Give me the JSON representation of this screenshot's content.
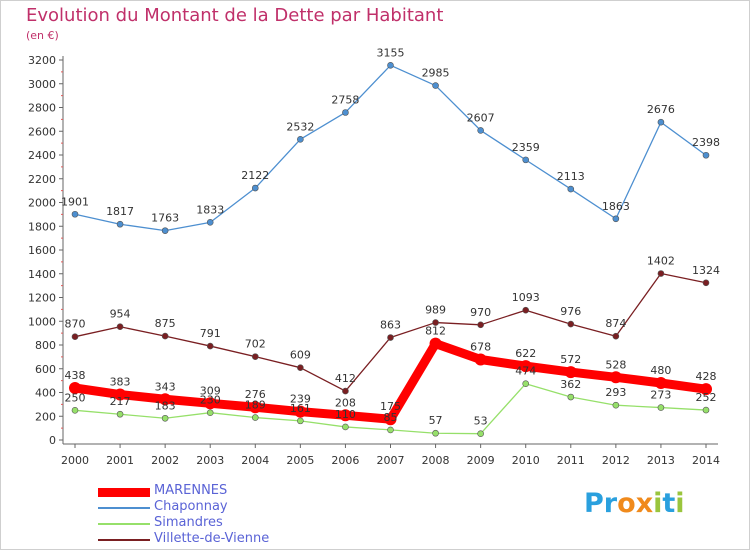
{
  "header": {
    "title": "Evolution du Montant de la Dette par Habitant",
    "subtitle": "(en €)"
  },
  "brand": {
    "letters": [
      "P",
      "r",
      "o",
      "x",
      "i",
      "t",
      "i"
    ],
    "colors": [
      "#2aa0de",
      "#2aa0de",
      "#f08a1c",
      "#f08a1c",
      "#9ac53d",
      "#2aa0de",
      "#9ac53d"
    ]
  },
  "chart_data": {
    "type": "line",
    "title": "Evolution du Montant de la Dette par Habitant",
    "subtitle": "(en €)",
    "xlabel": "",
    "ylabel": "",
    "x": [
      "2000",
      "2001",
      "2002",
      "2003",
      "2004",
      "2005",
      "2006",
      "2007",
      "2008",
      "2009",
      "2010",
      "2011",
      "2012",
      "2013",
      "2014"
    ],
    "ylim": [
      0,
      3200
    ],
    "yticks": [
      0,
      200,
      400,
      600,
      800,
      1000,
      1200,
      1400,
      1600,
      1800,
      2000,
      2200,
      2400,
      2600,
      2800,
      3000,
      3200
    ],
    "grid": false,
    "legend_position": "bottom-left",
    "series": [
      {
        "name": "MARENNES",
        "color": "#ff0000",
        "values": [
          438,
          383,
          343,
          309,
          276,
          239,
          208,
          175,
          812,
          678,
          622,
          572,
          528,
          480,
          428
        ]
      },
      {
        "name": "Chaponnay",
        "color": "#4d8fd0",
        "values": [
          1901,
          1817,
          1763,
          1833,
          2122,
          2532,
          2758,
          3155,
          2985,
          2607,
          2359,
          2113,
          1863,
          2676,
          2398
        ]
      },
      {
        "name": "Simandres",
        "color": "#96e06a",
        "values": [
          250,
          217,
          183,
          230,
          189,
          161,
          110,
          85,
          57,
          53,
          474,
          362,
          293,
          273,
          252
        ]
      },
      {
        "name": "Villette-de-Vienne",
        "color": "#7a1f22",
        "values": [
          870,
          954,
          875,
          791,
          702,
          609,
          412,
          863,
          989,
          970,
          1093,
          976,
          874,
          1402,
          1324
        ]
      }
    ]
  }
}
